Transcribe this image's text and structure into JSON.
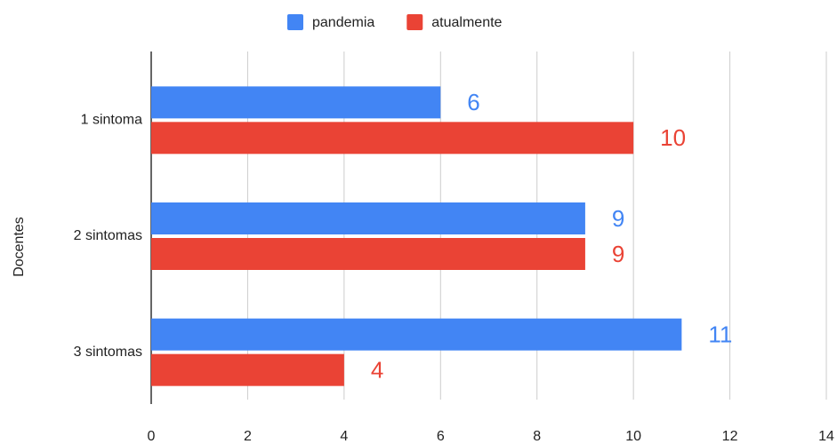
{
  "chart_data": {
    "type": "bar",
    "orientation": "horizontal",
    "y_label": "Docentes",
    "categories": [
      "1 sintoma",
      "2 sintomas",
      "3 sintomas"
    ],
    "series": [
      {
        "name": "pandemia",
        "color": "#4285f4",
        "values": [
          6,
          9,
          11
        ]
      },
      {
        "name": "atualmente",
        "color": "#ea4335",
        "values": [
          10,
          9,
          4
        ]
      }
    ],
    "xlim": [
      0,
      14
    ],
    "xticks": [
      0,
      2,
      4,
      6,
      8,
      10,
      12,
      14
    ],
    "grid": true,
    "legend": "top"
  }
}
